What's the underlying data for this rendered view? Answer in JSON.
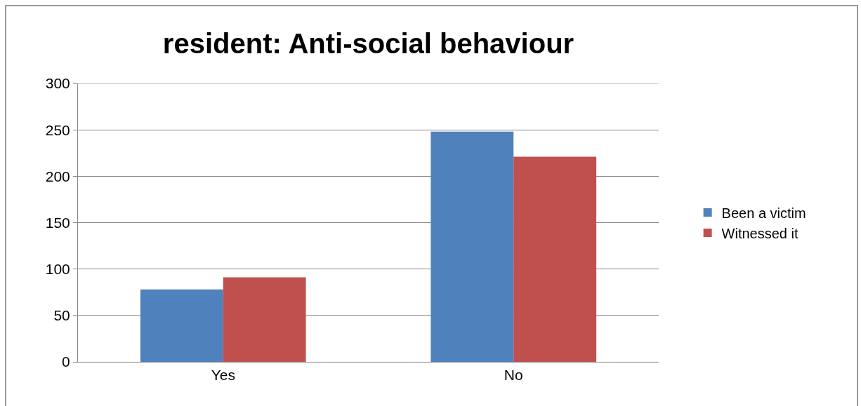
{
  "chart_data": {
    "type": "bar",
    "title": "resident: Anti-social behaviour",
    "categories": [
      "Yes",
      "No"
    ],
    "series": [
      {
        "name": "Been a victim",
        "color": "#4f81bd",
        "values": [
          78,
          248
        ]
      },
      {
        "name": "Witnessed it",
        "color": "#c0504d",
        "values": [
          91,
          221
        ]
      }
    ],
    "ylim": [
      0,
      300
    ],
    "yticks": [
      0,
      50,
      100,
      150,
      200,
      250,
      300
    ],
    "grid": "y",
    "legend": "right"
  }
}
